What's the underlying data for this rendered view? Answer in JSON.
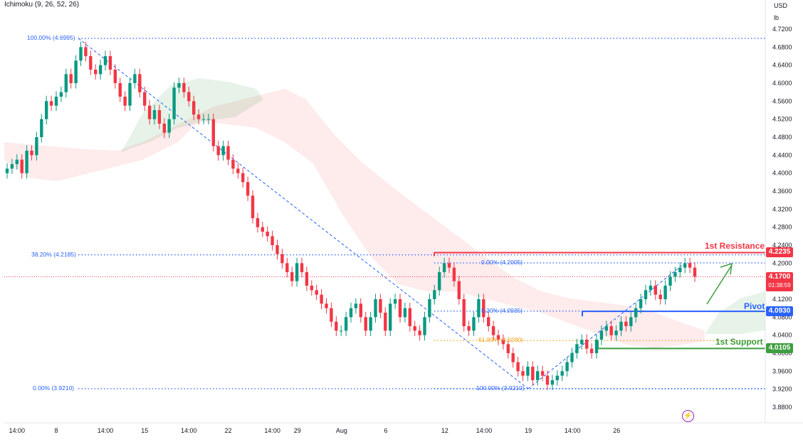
{
  "indicator": "Ichimoku (9, 26, 52, 26)",
  "axis_unit_currency": "USD",
  "axis_unit_lb": "lb",
  "chart_data": {
    "type": "candlestick",
    "ylim": [
      3.86,
      4.73
    ],
    "yticks": [
      "4.7200",
      "4.6800",
      "4.6400",
      "4.6000",
      "4.5600",
      "4.5200",
      "4.4800",
      "4.4400",
      "4.4000",
      "4.3600",
      "4.3200",
      "4.2800",
      "4.2400",
      "4.2000",
      "4.1600",
      "4.1200",
      "4.0800",
      "4.0400",
      "4.0000",
      "3.9600",
      "3.9200",
      "3.8800"
    ],
    "xticks": [
      {
        "label": "14:00",
        "i": 2
      },
      {
        "label": "8",
        "i": 10
      },
      {
        "label": "14:00",
        "i": 20
      },
      {
        "label": "15",
        "i": 28
      },
      {
        "label": "14:00",
        "i": 37
      },
      {
        "label": "22",
        "i": 45
      },
      {
        "label": "14:00",
        "i": 54
      },
      {
        "label": "29",
        "i": 62
      },
      {
        "label": "Aug",
        "i": 71
      },
      {
        "label": "6",
        "i": 80
      },
      {
        "label": "12",
        "i": 92
      },
      {
        "label": "14:00",
        "i": 100
      },
      {
        "label": "19",
        "i": 109
      },
      {
        "label": "14:00",
        "i": 118
      },
      {
        "label": "26",
        "i": 127
      }
    ],
    "closes": [
      4.41,
      4.42,
      4.43,
      4.4,
      4.45,
      4.44,
      4.48,
      4.52,
      4.56,
      4.55,
      4.57,
      4.58,
      4.62,
      4.6,
      4.65,
      4.68,
      4.66,
      4.63,
      4.62,
      4.64,
      4.66,
      4.63,
      4.6,
      4.57,
      4.55,
      4.6,
      4.62,
      4.58,
      4.55,
      4.52,
      4.54,
      4.51,
      4.49,
      4.52,
      4.59,
      4.6,
      4.58,
      4.56,
      4.53,
      4.52,
      4.52,
      4.52,
      4.46,
      4.44,
      4.46,
      4.43,
      4.41,
      4.4,
      4.38,
      4.35,
      4.3,
      4.28,
      4.27,
      4.26,
      4.24,
      4.22,
      4.2,
      4.18,
      4.16,
      4.2,
      4.18,
      4.15,
      4.14,
      4.13,
      4.11,
      4.1,
      4.07,
      4.05,
      4.05,
      4.08,
      4.1,
      4.11,
      4.08,
      4.05,
      4.08,
      4.12,
      4.09,
      4.05,
      4.11,
      4.12,
      4.08,
      4.1,
      4.06,
      4.05,
      4.04,
      4.08,
      4.12,
      4.14,
      4.18,
      4.2,
      4.19,
      4.16,
      4.12,
      4.06,
      4.05,
      4.08,
      4.12,
      4.08,
      4.06,
      4.04,
      4.03,
      4.02,
      4.0,
      3.98,
      3.96,
      3.95,
      3.97,
      3.94,
      3.96,
      3.95,
      3.93,
      3.94,
      3.95,
      3.96,
      3.98,
      4.0,
      4.02,
      4.03,
      4.01,
      4.0,
      4.03,
      4.05,
      4.06,
      4.04,
      4.05,
      4.07,
      4.06,
      4.08,
      4.1,
      4.12,
      4.14,
      4.15,
      4.13,
      4.12,
      4.15,
      4.17,
      4.18,
      4.19,
      4.2,
      4.19,
      4.17
    ],
    "fib_levels": [
      {
        "label": "100.00% (4.6995)",
        "value": 4.6995
      },
      {
        "label": "38.20% (4.2185)",
        "value": 4.2185
      },
      {
        "label": "0.00% (4.2005)",
        "value": 4.2005
      },
      {
        "label": "8.20% (4.0935)",
        "value": 4.0935
      },
      {
        "label": "61.80% (4.0280)",
        "value": 4.028
      },
      {
        "label": "0.00% (3.9210)",
        "value": 3.921
      },
      {
        "label": "100.00% (3.9210)",
        "value": 3.921
      }
    ],
    "levels": [
      {
        "name": "1st Resistance",
        "value": 4.2235,
        "color": "#f23645"
      },
      {
        "name": "Pivot",
        "value": 4.093,
        "color": "#2962ff"
      },
      {
        "name": "1st Support",
        "value": 4.0105,
        "color": "#3c9e3e"
      }
    ],
    "last_price": {
      "value": "4.1700",
      "timer": "01:38:59",
      "color": "#f23645"
    }
  }
}
